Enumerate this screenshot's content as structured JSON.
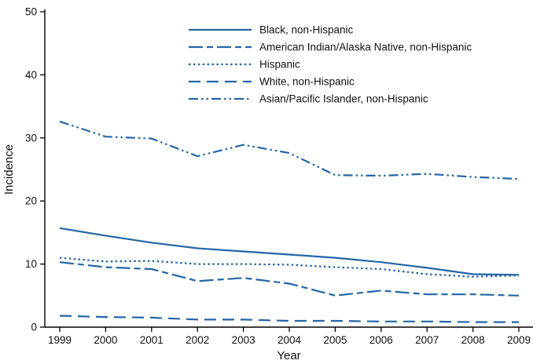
{
  "figure": {
    "background": "#ffffff"
  },
  "chart_data": {
    "type": "line",
    "title": "",
    "xlabel": "Year",
    "ylabel": "Incidence",
    "ylim": [
      0,
      50
    ],
    "yticks": [
      0,
      10,
      20,
      30,
      40,
      50
    ],
    "x": [
      1999,
      2000,
      2001,
      2002,
      2003,
      2004,
      2005,
      2006,
      2007,
      2008,
      2009
    ],
    "grid": false,
    "legend_position": "inside-top-center",
    "line_color": "#2465a7",
    "series": [
      {
        "name": "Black, non-Hispanic",
        "dash": "solid",
        "values": [
          15.7,
          14.5,
          13.4,
          12.5,
          12.0,
          11.5,
          11.0,
          10.3,
          9.4,
          8.4,
          8.3
        ]
      },
      {
        "name": "American Indian/Alaska Native, non-Hispanic",
        "dash": "long-dash-short",
        "values": [
          10.3,
          9.5,
          9.2,
          7.3,
          7.8,
          6.9,
          5.0,
          5.8,
          5.2,
          5.2,
          5.0
        ]
      },
      {
        "name": "Hispanic",
        "dash": "dotted",
        "values": [
          11.0,
          10.4,
          10.5,
          10.0,
          10.0,
          9.9,
          9.5,
          9.2,
          8.4,
          8.0,
          8.2
        ]
      },
      {
        "name": "White, non-Hispanic",
        "dash": "long-dash",
        "values": [
          1.8,
          1.6,
          1.5,
          1.2,
          1.2,
          1.0,
          1.0,
          0.9,
          0.9,
          0.8,
          0.8
        ]
      },
      {
        "name": "Asian/Pacific Islander, non-Hispanic",
        "dash": "dash-dot-dot",
        "values": [
          32.6,
          30.2,
          29.9,
          27.1,
          28.9,
          27.6,
          24.1,
          24.0,
          24.3,
          23.8,
          23.5
        ]
      }
    ]
  }
}
